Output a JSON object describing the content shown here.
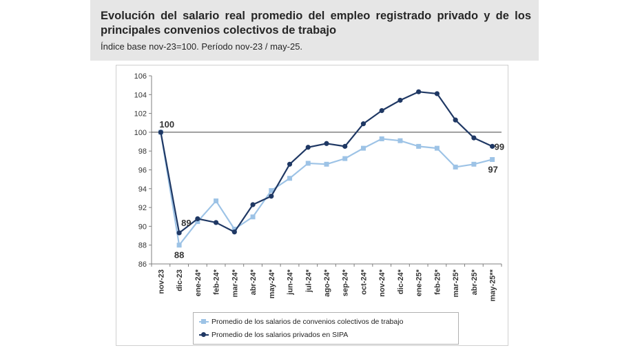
{
  "header": {
    "title": "Evolución del salario real promedio del empleo registrado privado y de los principales convenios colectivos de trabajo",
    "subtitle": "Índice base nov-23=100. Período nov-23 / may-25."
  },
  "chart_data": {
    "type": "line",
    "categories": [
      "nov-23",
      "dic-23",
      "ene-24*",
      "feb-24*",
      "mar-24*",
      "abr-24*",
      "may-24*",
      "jun-24*",
      "jul-24*",
      "ago-24*",
      "sep-24*",
      "oct-24*",
      "nov-24*",
      "dic-24*",
      "ene-25*",
      "feb-25*",
      "mar-25*",
      "abr-25*",
      "may-25**"
    ],
    "series": [
      {
        "name": "Promedio de los salarios de convenios colectivos de trabajo",
        "color": "#9dc3e6",
        "marker": "square",
        "values": [
          100,
          88.0,
          90.5,
          92.7,
          89.7,
          91.0,
          93.8,
          95.1,
          96.7,
          96.6,
          97.2,
          98.3,
          99.3,
          99.1,
          98.5,
          98.3,
          96.3,
          96.6,
          97.1
        ]
      },
      {
        "name": "Promedio de los salarios privados en SIPA",
        "color": "#1f3864",
        "marker": "circle",
        "values": [
          100,
          89.3,
          90.8,
          90.4,
          89.4,
          92.3,
          93.2,
          96.6,
          98.4,
          98.8,
          98.5,
          100.9,
          102.3,
          103.4,
          104.3,
          104.1,
          101.3,
          99.4,
          98.5
        ]
      }
    ],
    "ylim": [
      86,
      106
    ],
    "yticks": [
      86,
      88,
      90,
      92,
      94,
      96,
      98,
      100,
      102,
      104,
      106
    ],
    "reference_line": 100,
    "data_labels": [
      {
        "text": "100",
        "series": 1,
        "index": 0
      },
      {
        "text": "89",
        "series": 1,
        "index": 1
      },
      {
        "text": "88",
        "series": 0,
        "index": 1
      },
      {
        "text": "99",
        "series": 1,
        "index": 18
      },
      {
        "text": "97",
        "series": 0,
        "index": 18
      }
    ],
    "legend_position": "bottom",
    "grid": false
  }
}
